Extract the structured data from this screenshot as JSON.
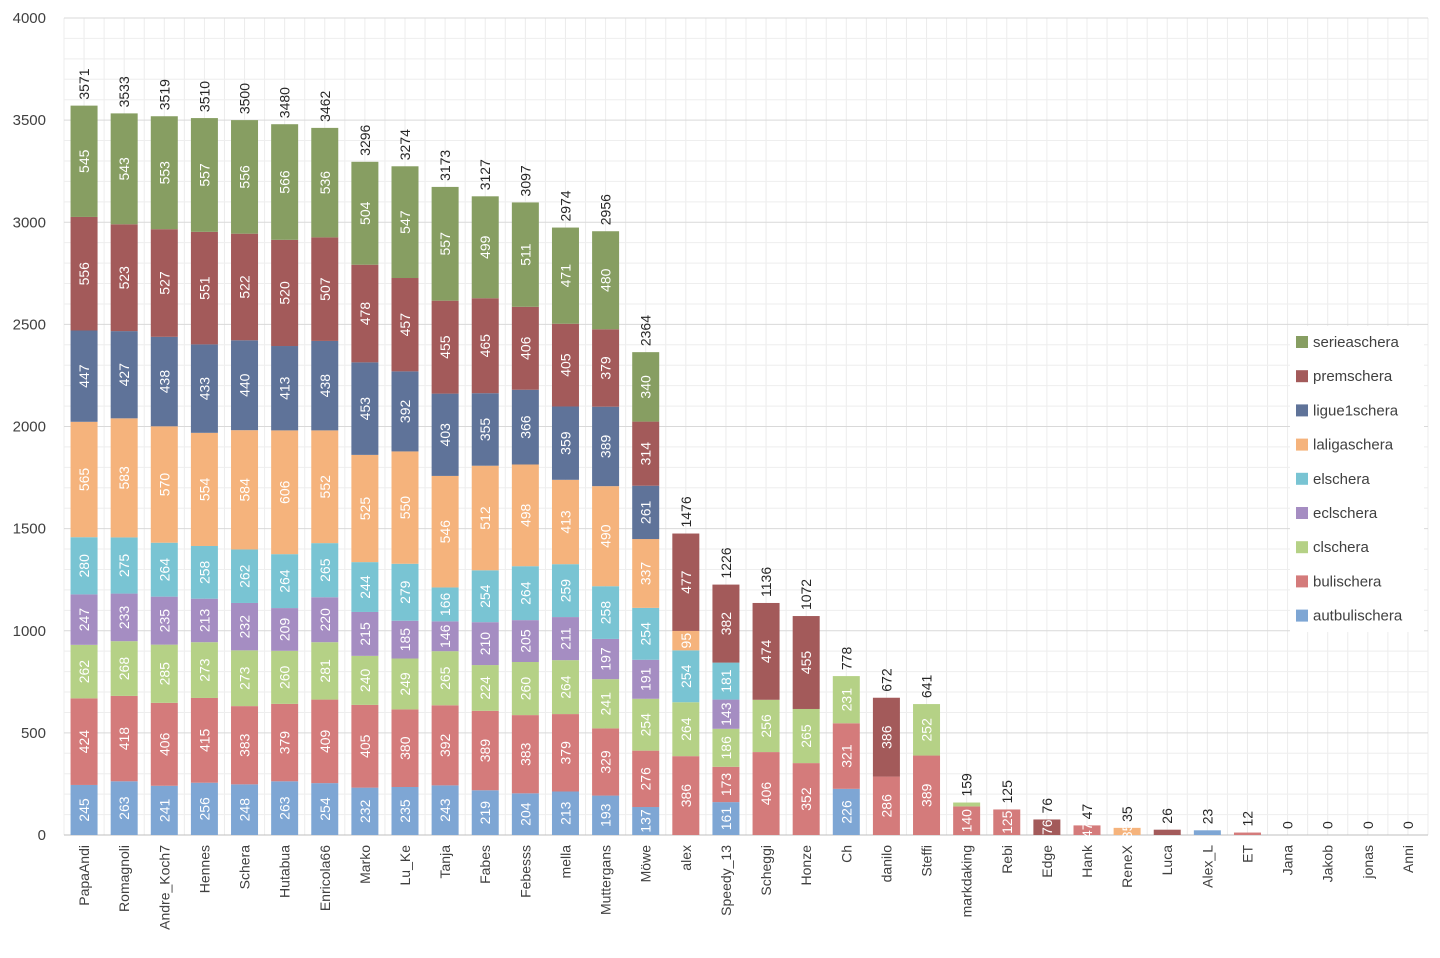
{
  "chart_data": {
    "type": "bar",
    "stacked": true,
    "ylim": [
      0,
      4000
    ],
    "yticks": [
      0,
      500,
      1000,
      1500,
      2000,
      2500,
      3000,
      3500,
      4000
    ],
    "grid": true,
    "legend_position": "right",
    "categories": [
      "PapaAndi",
      "Romagnoli",
      "Andre_Koch7",
      "Hennes",
      "Schera",
      "Hutabua",
      "Enricola66",
      "Marko",
      "Lu_Ke",
      "Tanja",
      "Fabes",
      "Febesss",
      "mella",
      "Muttergans",
      "Möwe",
      "alex",
      "Speedy_13",
      "Scheggi",
      "Honze",
      "Ch",
      "danilo",
      "Steffi",
      "markdaking",
      "Rebi",
      "Edge",
      "Hank",
      "ReneX",
      "Luca",
      "Alex_L",
      "ET",
      "Jana",
      "Jakob",
      "jonas",
      "Anni"
    ],
    "totals": [
      3571,
      3533,
      3519,
      3510,
      3500,
      3480,
      3462,
      3296,
      3274,
      3173,
      3127,
      3097,
      2974,
      2956,
      2364,
      1476,
      1226,
      1136,
      1072,
      778,
      672,
      641,
      159,
      125,
      76,
      47,
      35,
      26,
      23,
      12,
      0,
      0,
      0,
      0
    ],
    "series": [
      {
        "name": "autbulischera",
        "color": "#7ea6d4",
        "values": [
          245,
          263,
          241,
          256,
          248,
          263,
          254,
          232,
          235,
          243,
          219,
          204,
          213,
          193,
          137,
          0,
          161,
          0,
          0,
          226,
          0,
          0,
          0,
          0,
          0,
          0,
          0,
          0,
          23,
          0,
          0,
          0,
          0,
          0
        ]
      },
      {
        "name": "bulischera",
        "color": "#d47b7b",
        "values": [
          424,
          418,
          406,
          415,
          383,
          379,
          409,
          405,
          380,
          392,
          389,
          383,
          379,
          329,
          276,
          386,
          173,
          406,
          352,
          321,
          286,
          389,
          140,
          125,
          0,
          47,
          0,
          0,
          0,
          12,
          0,
          0,
          0,
          0
        ]
      },
      {
        "name": "clschera",
        "color": "#b5d186",
        "values": [
          262,
          268,
          285,
          273,
          273,
          260,
          281,
          240,
          249,
          265,
          224,
          260,
          264,
          241,
          254,
          264,
          186,
          256,
          265,
          231,
          0,
          252,
          19,
          0,
          0,
          0,
          0,
          0,
          0,
          0,
          0,
          0,
          0,
          0
        ]
      },
      {
        "name": "eclschera",
        "color": "#a58dc2",
        "values": [
          247,
          233,
          235,
          213,
          232,
          209,
          220,
          215,
          185,
          146,
          210,
          205,
          211,
          197,
          191,
          0,
          143,
          0,
          0,
          0,
          0,
          0,
          0,
          0,
          0,
          0,
          0,
          0,
          0,
          0,
          0,
          0,
          0,
          0
        ]
      },
      {
        "name": "elschera",
        "color": "#79c4d3",
        "values": [
          280,
          275,
          264,
          258,
          262,
          264,
          265,
          244,
          279,
          166,
          254,
          264,
          259,
          258,
          254,
          254,
          181,
          0,
          0,
          0,
          0,
          0,
          0,
          0,
          0,
          0,
          0,
          0,
          0,
          0,
          0,
          0,
          0,
          0
        ]
      },
      {
        "name": "laligaschera",
        "color": "#f5b37c",
        "values": [
          565,
          583,
          570,
          554,
          584,
          606,
          552,
          525,
          550,
          546,
          512,
          498,
          413,
          490,
          337,
          95,
          0,
          0,
          0,
          0,
          0,
          0,
          0,
          0,
          0,
          0,
          35,
          0,
          0,
          0,
          0,
          0,
          0,
          0
        ]
      },
      {
        "name": "ligue1schera",
        "color": "#5f7399",
        "values": [
          447,
          427,
          438,
          433,
          440,
          413,
          438,
          453,
          392,
          403,
          355,
          366,
          359,
          389,
          261,
          0,
          0,
          0,
          0,
          0,
          0,
          0,
          0,
          0,
          0,
          0,
          0,
          0,
          0,
          0,
          0,
          0,
          0,
          0
        ]
      },
      {
        "name": "premschera",
        "color": "#a35a5a",
        "values": [
          556,
          523,
          527,
          551,
          522,
          520,
          507,
          478,
          457,
          455,
          465,
          406,
          405,
          379,
          314,
          477,
          382,
          474,
          455,
          0,
          386,
          0,
          0,
          0,
          76,
          0,
          0,
          26,
          0,
          0,
          0,
          0,
          0,
          0
        ]
      },
      {
        "name": "serieaschera",
        "color": "#879e62",
        "values": [
          545,
          543,
          553,
          557,
          556,
          566,
          536,
          504,
          547,
          557,
          499,
          511,
          471,
          480,
          340,
          0,
          0,
          0,
          0,
          0,
          0,
          0,
          0,
          0,
          0,
          0,
          0,
          0,
          0,
          0,
          0,
          0,
          0,
          0
        ]
      }
    ],
    "segment_labels": {
      "autbulischera": [
        "245",
        "263",
        "241",
        "256",
        "248",
        "263",
        "254",
        "232",
        "235",
        "243",
        "219",
        "204",
        "213",
        "193",
        "137",
        "",
        "161",
        "",
        "",
        "226",
        "",
        "",
        "",
        "",
        "",
        "",
        "",
        "",
        "",
        "",
        "",
        "",
        "",
        ""
      ],
      "bulischera": [
        "424",
        "418",
        "406",
        "415",
        "383",
        "379",
        "409",
        "405",
        "380",
        "392",
        "389",
        "383",
        "379",
        "329",
        "276",
        "386",
        "173",
        "406",
        "352",
        "321",
        "286",
        "389",
        "140",
        "125",
        "",
        "47",
        "",
        "",
        "",
        "",
        "",
        "",
        "",
        ""
      ],
      "clschera": [
        "262",
        "268",
        "285",
        "273",
        "273",
        "260",
        "281",
        "240",
        "249",
        "265",
        "224",
        "260",
        "264",
        "241",
        "254",
        "264",
        "186",
        "256",
        "265",
        "231",
        "",
        "252",
        "",
        "",
        "",
        "",
        "",
        "",
        "",
        "",
        "",
        "",
        "",
        ""
      ],
      "eclschera": [
        "247",
        "233",
        "235",
        "213",
        "232",
        "209",
        "220",
        "215",
        "185",
        "146",
        "210",
        "205",
        "211",
        "197",
        "191",
        "",
        "143",
        "",
        "",
        "",
        "",
        "",
        "",
        "",
        "",
        "",
        "",
        "",
        "",
        "",
        "",
        "",
        "",
        ""
      ],
      "elschera": [
        "280",
        "275",
        "264",
        "258",
        "262",
        "264",
        "265",
        "244",
        "279",
        "166",
        "254",
        "264",
        "259",
        "258",
        "254",
        "254",
        "181",
        "",
        "",
        "",
        "",
        "",
        "",
        "",
        "",
        "",
        "",
        "",
        "",
        "",
        "",
        "",
        "",
        ""
      ],
      "laligaschera": [
        "565",
        "583",
        "570",
        "554",
        "584",
        "606",
        "552",
        "525",
        "550",
        "546",
        "512",
        "498",
        "413",
        "490",
        "337",
        "95",
        "",
        "",
        "",
        "",
        "",
        "",
        "",
        "",
        "",
        "",
        "35",
        "",
        "",
        "",
        "",
        "",
        "",
        ""
      ],
      "ligue1schera": [
        "447",
        "427",
        "438",
        "433",
        "440",
        "413",
        "438",
        "453",
        "392",
        "403",
        "355",
        "366",
        "359",
        "389",
        "261",
        "",
        "",
        "",
        "",
        "",
        "",
        "",
        "",
        "",
        "",
        "",
        "",
        "",
        "",
        "",
        "",
        "",
        "",
        ""
      ],
      "premschera": [
        "556",
        "523",
        "527",
        "551",
        "522",
        "520",
        "507",
        "478",
        "457",
        "455",
        "465",
        "406",
        "405",
        "379",
        "314",
        "477",
        "382",
        "474",
        "455",
        "",
        "386",
        "",
        "",
        "",
        "76",
        "",
        "",
        "",
        "",
        "",
        "",
        "",
        "",
        ""
      ],
      "serieaschera": [
        "545",
        "543",
        "553",
        "557",
        "556",
        "566",
        "536",
        "504",
        "547",
        "557",
        "499",
        "511",
        "471",
        "480",
        "340",
        "",
        "",
        "",
        "",
        "",
        "",
        "",
        "",
        "",
        "",
        "",
        "",
        "",
        "",
        "",
        "",
        "",
        "",
        ""
      ]
    }
  }
}
